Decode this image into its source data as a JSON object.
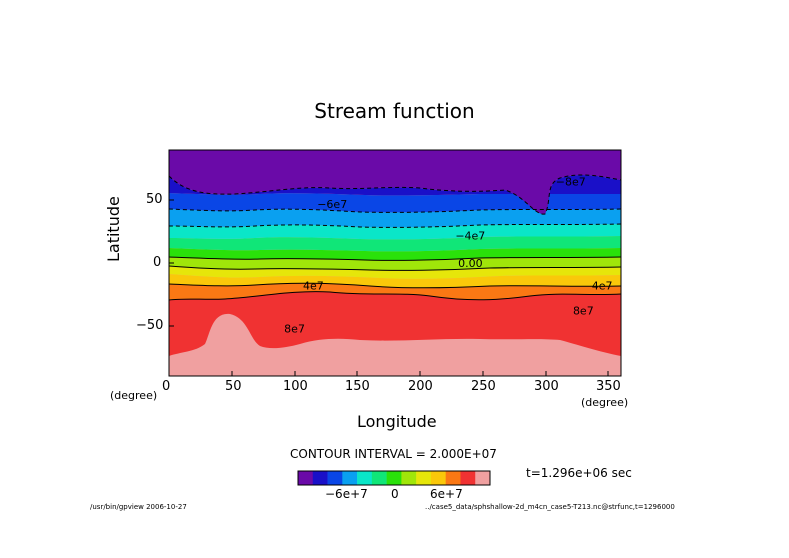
{
  "chart_data": {
    "type": "heatmap",
    "title": "Stream function",
    "xlabel": "Longitude",
    "ylabel": "Latitude",
    "x_unit": "(degree)",
    "y_unit": "(degree)",
    "xlim": [
      0,
      360
    ],
    "ylim": [
      -90,
      90
    ],
    "x_ticks": [
      "0",
      "50",
      "100",
      "150",
      "200",
      "250",
      "300",
      "350"
    ],
    "x_tick_values": [
      0,
      50,
      100,
      150,
      200,
      250,
      300,
      350
    ],
    "y_ticks": [
      "50",
      "0",
      "−50"
    ],
    "y_tick_values": [
      50,
      0,
      -50
    ],
    "contour_interval_label": "CONTOUR INTERVAL = 2.000E+07",
    "contour_interval": 20000000,
    "levels": [
      -80000000,
      -60000000,
      -40000000,
      -20000000,
      0,
      20000000,
      40000000,
      60000000,
      80000000,
      100000000
    ],
    "contour_labels": [
      {
        "text": "−8e7",
        "lon": 320,
        "lat": 65
      },
      {
        "text": "−6e7",
        "lon": 130,
        "lat": 47
      },
      {
        "text": "−4e7",
        "lon": 240,
        "lat": 22
      },
      {
        "text": "0.00",
        "lon": 240,
        "lat": 0
      },
      {
        "text": "4e7",
        "lon": 115,
        "lat": -18
      },
      {
        "text": "4e7",
        "lon": 345,
        "lat": -18
      },
      {
        "text": "8e7",
        "lon": 100,
        "lat": -52
      },
      {
        "text": "8e7",
        "lon": 330,
        "lat": -38
      }
    ],
    "colorbar": {
      "colors": [
        "#6a0aa8",
        "#1a10c8",
        "#0a46e6",
        "#0aa0f0",
        "#0ae6c8",
        "#10e678",
        "#2ae10a",
        "#a0e60a",
        "#e6e60a",
        "#fac80a",
        "#fa7814",
        "#f03232",
        "#f0a0a0"
      ],
      "tick_labels": [
        "−6e+7",
        "0",
        "6e+7"
      ]
    },
    "time_label": "t=1.296e+06 sec"
  },
  "footer": {
    "left": "/usr/bin/gpview  2006-10-27",
    "right": "../case5_data/sphshallow-2d_m4cn_case5-T213.nc@strfunc,t=1296000"
  }
}
